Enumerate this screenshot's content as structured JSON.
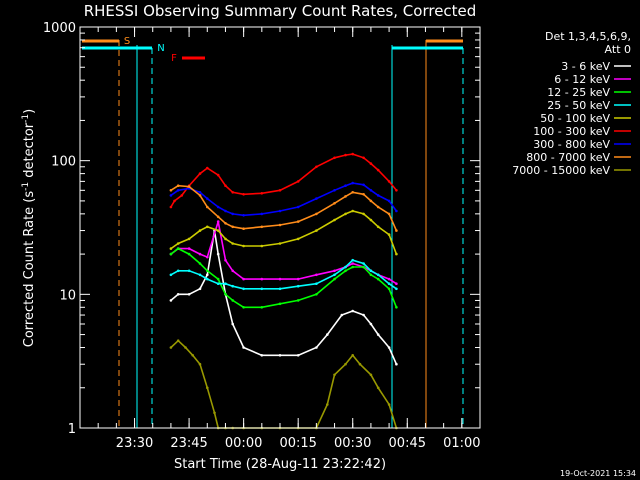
{
  "chart_data": {
    "type": "line",
    "title": "RHESSI Observing Summary Count Rates, Corrected",
    "xlabel": "Start Time (28-Aug-11 23:22:42)",
    "ylabel": "Corrected Count Rate (s",
    "ylabel_sup1": "-1",
    "ylabel_mid": " detector",
    "ylabel_sup2": "-1",
    "ylabel_end": ")",
    "y_scale": "log",
    "ylim": [
      1,
      1000
    ],
    "y_ticks": [
      {
        "value": 1,
        "label": "1"
      },
      {
        "value": 10,
        "label": "10"
      },
      {
        "value": 100,
        "label": "100"
      },
      {
        "value": 1000,
        "label": "1000"
      }
    ],
    "x_range_minutes_from_2315": [
      0,
      110
    ],
    "x_ticks": [
      {
        "t": 15,
        "label": "23:30"
      },
      {
        "t": 30,
        "label": "23:45"
      },
      {
        "t": 45,
        "label": "00:00"
      },
      {
        "t": 60,
        "label": "00:15"
      },
      {
        "t": 75,
        "label": "00:30"
      },
      {
        "t": 90,
        "label": "00:45"
      },
      {
        "t": 105,
        "label": "01:00"
      }
    ],
    "x_minor_step_minutes": 5,
    "legend_header": [
      "Det 1,3,4,5,6,9,",
      "Att 0"
    ],
    "legend_position": "right",
    "series": [
      {
        "name": "3 - 6 keV",
        "color": "#ffffff",
        "t": [
          25,
          27,
          30,
          33,
          35,
          37,
          38,
          40,
          42,
          45,
          50,
          55,
          60,
          65,
          68,
          72,
          75,
          78,
          80,
          82,
          85,
          87
        ],
        "v": [
          9,
          10,
          10,
          11,
          14,
          30,
          20,
          10,
          6,
          4,
          3.5,
          3.5,
          3.5,
          4,
          5,
          7,
          7.5,
          7,
          6,
          5,
          4,
          3
        ]
      },
      {
        "name": "6 - 12 keV",
        "color": "#ff00ff",
        "t": [
          25,
          27,
          30,
          33,
          35,
          38,
          40,
          42,
          45,
          50,
          55,
          60,
          65,
          70,
          73,
          75,
          78,
          80,
          82,
          85,
          87
        ],
        "v": [
          20,
          22,
          22,
          20,
          19,
          35,
          18,
          15,
          13,
          13,
          13,
          13,
          14,
          15,
          16,
          17,
          16,
          15,
          14,
          13,
          12
        ]
      },
      {
        "name": "12 - 25 keV",
        "color": "#00ff00",
        "t": [
          25,
          27,
          30,
          33,
          35,
          38,
          40,
          42,
          45,
          50,
          55,
          60,
          65,
          70,
          73,
          75,
          78,
          80,
          82,
          85,
          87
        ],
        "v": [
          20,
          22,
          20,
          17,
          15,
          13,
          10,
          9,
          8,
          8,
          8.5,
          9,
          10,
          13,
          15,
          16,
          16,
          14,
          13,
          11,
          8
        ]
      },
      {
        "name": "25 - 50 keV",
        "color": "#00ffff",
        "t": [
          25,
          27,
          30,
          33,
          35,
          38,
          40,
          42,
          45,
          50,
          55,
          60,
          65,
          70,
          73,
          75,
          78,
          80,
          82,
          85,
          87
        ],
        "v": [
          14,
          15,
          15,
          14,
          13,
          12,
          12,
          11.5,
          11,
          11,
          11,
          11.5,
          12,
          14,
          16,
          18,
          17,
          15,
          14,
          12,
          11
        ]
      },
      {
        "name": "50 - 100 keV",
        "color": "#cccc00",
        "t": [
          25,
          27,
          30,
          33,
          35,
          38,
          40,
          42,
          45,
          50,
          55,
          60,
          65,
          70,
          73,
          75,
          78,
          80,
          82,
          85,
          87
        ],
        "v": [
          22,
          24,
          26,
          30,
          32,
          30,
          26,
          24,
          23,
          23,
          24,
          26,
          30,
          36,
          40,
          42,
          40,
          36,
          32,
          28,
          20
        ]
      },
      {
        "name": "100 - 300 keV",
        "color": "#ff0000",
        "t": [
          25,
          26,
          28,
          30,
          33,
          35,
          38,
          40,
          42,
          45,
          50,
          55,
          60,
          65,
          70,
          73,
          75,
          78,
          80,
          82,
          85,
          87
        ],
        "v": [
          45,
          50,
          55,
          65,
          80,
          88,
          78,
          65,
          58,
          56,
          57,
          60,
          70,
          90,
          105,
          110,
          112,
          105,
          95,
          85,
          70,
          60
        ]
      },
      {
        "name": "300 - 800 keV",
        "color": "#0000ff",
        "t": [
          25,
          27,
          30,
          33,
          35,
          38,
          40,
          42,
          45,
          50,
          55,
          60,
          65,
          70,
          73,
          75,
          78,
          80,
          82,
          85,
          87
        ],
        "v": [
          55,
          60,
          62,
          58,
          52,
          45,
          42,
          40,
          39,
          40,
          42,
          45,
          52,
          60,
          65,
          68,
          66,
          60,
          55,
          50,
          42
        ]
      },
      {
        "name": "800 - 7000 keV",
        "color": "#ff8c1a",
        "t": [
          25,
          27,
          30,
          33,
          35,
          38,
          40,
          42,
          45,
          50,
          55,
          60,
          65,
          70,
          73,
          75,
          78,
          80,
          82,
          85,
          87
        ],
        "v": [
          60,
          65,
          64,
          55,
          45,
          38,
          34,
          32,
          31,
          32,
          33,
          35,
          40,
          48,
          54,
          58,
          56,
          50,
          45,
          40,
          30
        ]
      },
      {
        "name": "7000 - 15000 keV",
        "color": "#999900",
        "t": [
          25,
          27,
          29,
          31,
          33,
          35,
          37,
          38,
          40,
          42,
          45,
          50,
          55,
          60,
          65,
          68,
          70,
          73,
          75,
          77,
          80,
          82,
          85,
          87
        ],
        "v": [
          4,
          4.5,
          4,
          3.5,
          3,
          2,
          1.3,
          1,
          1,
          1,
          1,
          1,
          1,
          1,
          1,
          1.5,
          2.5,
          3,
          3.5,
          3,
          2.5,
          2,
          1.5,
          1
        ]
      }
    ],
    "flags": [
      {
        "label": "S",
        "color": "#ff8c1a"
      },
      {
        "label": "N",
        "color": "#00ffff"
      },
      {
        "label": "F",
        "color": "#ff0000"
      }
    ],
    "timestamp": "19-Oct-2021 15:34"
  }
}
